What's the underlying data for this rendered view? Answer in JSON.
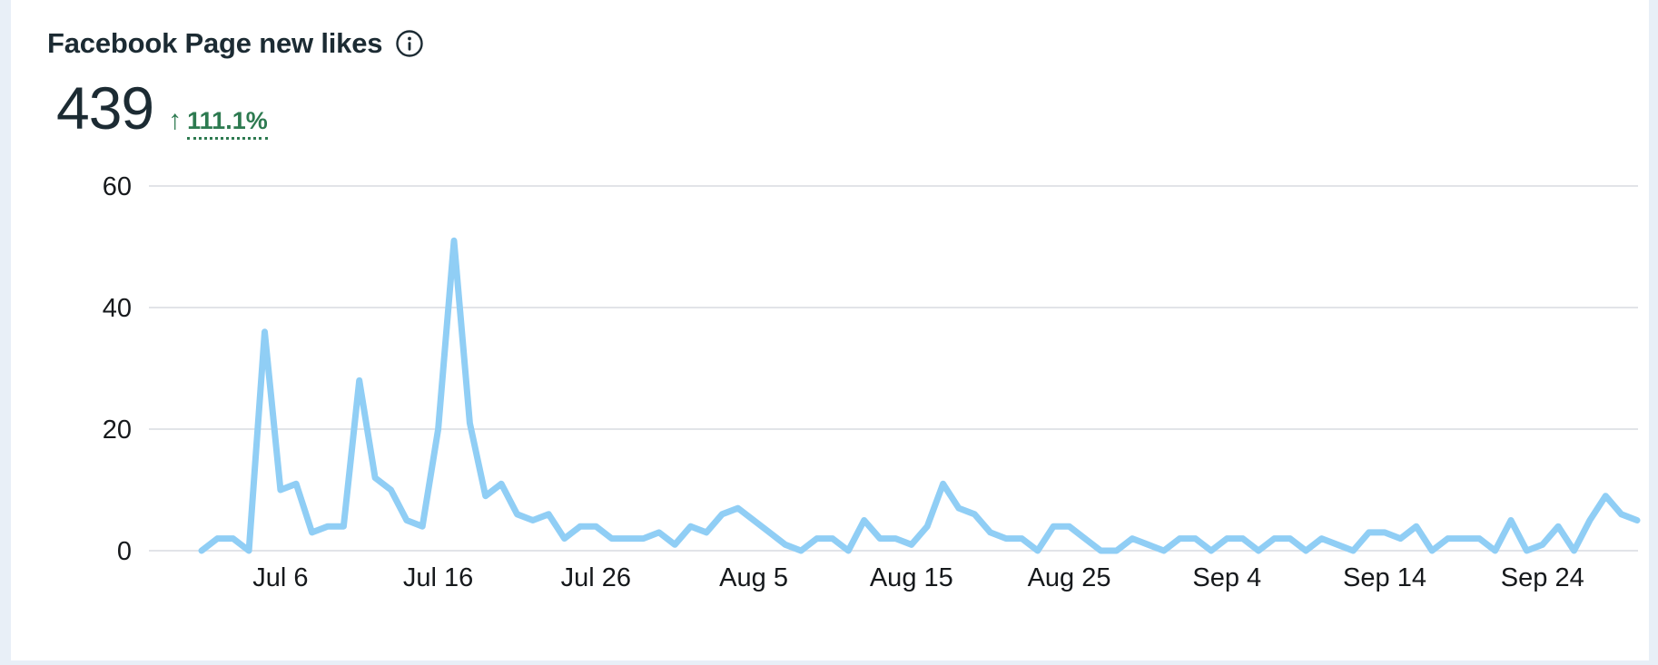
{
  "card": {
    "title": "Facebook Page new likes",
    "metric": {
      "value": "439",
      "direction": "up",
      "arrow_glyph": "↑",
      "change": "111.1%"
    }
  },
  "colors": {
    "line_blue": "#90cef5",
    "positive_green": "#2d7a50",
    "text_dark": "#1c2b33",
    "axis_text": "#16191c",
    "gridline": "#e2e4e8",
    "page_bg": "#e8eff7",
    "card_bg": "#ffffff"
  },
  "chart_data": {
    "type": "line",
    "title": "Facebook Page new likes",
    "total": 439,
    "grid": "horizontal",
    "legend": "none",
    "ylim": [
      0,
      60
    ],
    "y_ticks": [
      0,
      20,
      40,
      60
    ],
    "x_tick_labels": [
      "Jul 6",
      "Jul 16",
      "Jul 26",
      "Aug 5",
      "Aug 15",
      "Aug 25",
      "Sep 4",
      "Sep 14",
      "Sep 24"
    ],
    "x_tick_day_index": [
      5,
      15,
      25,
      35,
      45,
      55,
      65,
      75,
      85
    ],
    "x": [
      "Jul 1",
      "Jul 2",
      "Jul 3",
      "Jul 4",
      "Jul 5",
      "Jul 6",
      "Jul 7",
      "Jul 8",
      "Jul 9",
      "Jul 10",
      "Jul 11",
      "Jul 12",
      "Jul 13",
      "Jul 14",
      "Jul 15",
      "Jul 16",
      "Jul 17",
      "Jul 18",
      "Jul 19",
      "Jul 20",
      "Jul 21",
      "Jul 22",
      "Jul 23",
      "Jul 24",
      "Jul 25",
      "Jul 26",
      "Jul 27",
      "Jul 28",
      "Jul 29",
      "Jul 30",
      "Jul 31",
      "Aug 1",
      "Aug 2",
      "Aug 3",
      "Aug 4",
      "Aug 5",
      "Aug 6",
      "Aug 7",
      "Aug 8",
      "Aug 9",
      "Aug 10",
      "Aug 11",
      "Aug 12",
      "Aug 13",
      "Aug 14",
      "Aug 15",
      "Aug 16",
      "Aug 17",
      "Aug 18",
      "Aug 19",
      "Aug 20",
      "Aug 21",
      "Aug 22",
      "Aug 23",
      "Aug 24",
      "Aug 25",
      "Aug 26",
      "Aug 27",
      "Aug 28",
      "Aug 29",
      "Aug 30",
      "Aug 31",
      "Sep 1",
      "Sep 2",
      "Sep 3",
      "Sep 4",
      "Sep 5",
      "Sep 6",
      "Sep 7",
      "Sep 8",
      "Sep 9",
      "Sep 10",
      "Sep 11",
      "Sep 12",
      "Sep 13",
      "Sep 14",
      "Sep 15",
      "Sep 16",
      "Sep 17",
      "Sep 18",
      "Sep 19",
      "Sep 20",
      "Sep 21",
      "Sep 22",
      "Sep 23",
      "Sep 24",
      "Sep 25",
      "Sep 26",
      "Sep 27",
      "Sep 28",
      "Sep 29",
      "Sep 30"
    ],
    "values": [
      0,
      2,
      2,
      0,
      36,
      10,
      11,
      3,
      4,
      4,
      28,
      12,
      10,
      5,
      4,
      20,
      51,
      21,
      9,
      11,
      6,
      5,
      6,
      2,
      4,
      4,
      2,
      2,
      2,
      3,
      1,
      4,
      3,
      6,
      7,
      5,
      3,
      1,
      0,
      2,
      2,
      0,
      5,
      2,
      2,
      1,
      4,
      11,
      7,
      6,
      3,
      2,
      2,
      0,
      4,
      4,
      2,
      0,
      0,
      2,
      1,
      0,
      2,
      2,
      0,
      2,
      2,
      0,
      2,
      2,
      0,
      2,
      1,
      0,
      3,
      3,
      2,
      4,
      0,
      2,
      2,
      2,
      0,
      5,
      0,
      1,
      4,
      0,
      5,
      9,
      6,
      5
    ]
  }
}
